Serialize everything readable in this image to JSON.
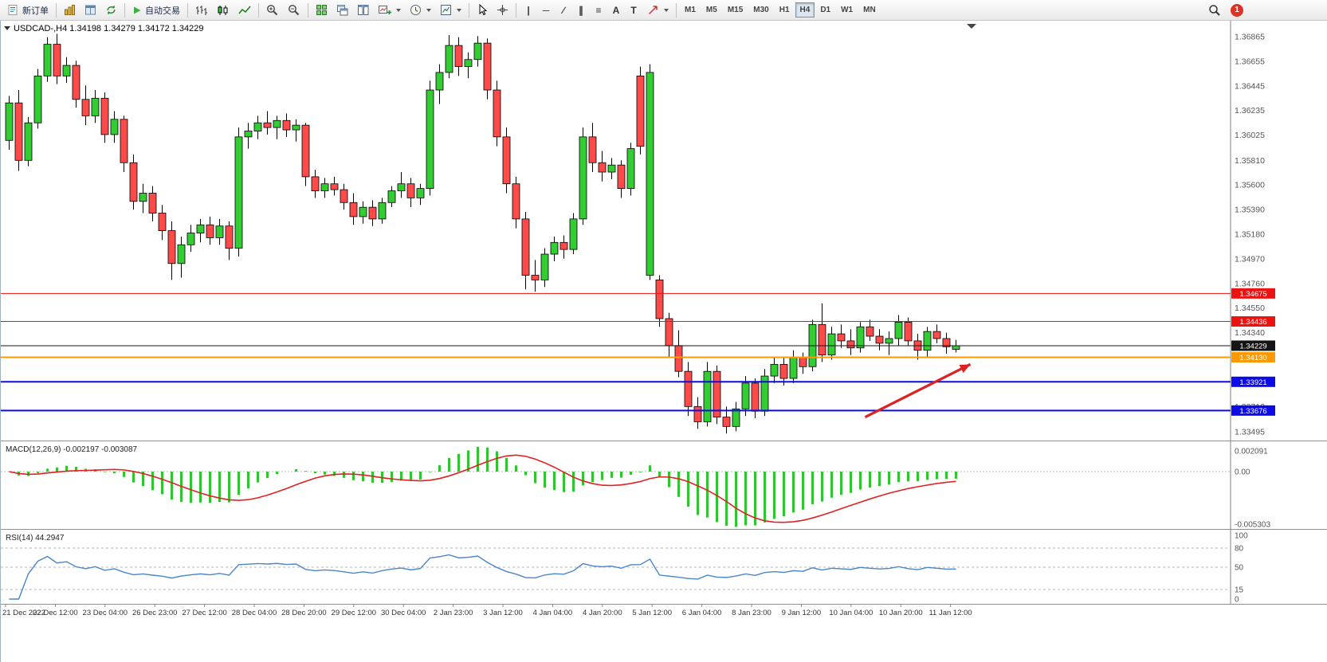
{
  "toolbar": {
    "new_order_label": "新订单",
    "auto_trading_label": "自动交易",
    "tools": [
      {
        "name": "vertical-line-tool",
        "glyph": "|"
      },
      {
        "name": "horizontal-line-tool",
        "glyph": "─"
      },
      {
        "name": "trendline-tool",
        "glyph": "∕"
      },
      {
        "name": "equidistant-channel-tool",
        "glyph": "∥"
      },
      {
        "name": "fibonacci-tool",
        "glyph": "≡"
      },
      {
        "name": "text-tool",
        "glyph": "A"
      },
      {
        "name": "text-label-tool",
        "glyph": "T"
      }
    ],
    "timeframes": [
      "M1",
      "M5",
      "M15",
      "M30",
      "H1",
      "H4",
      "D1",
      "W1",
      "MN"
    ],
    "active_timeframe": "H4",
    "notification_count": "1"
  },
  "chart": {
    "symbol": "USDCAD-,H4",
    "open": "1.34198",
    "high": "1.34279",
    "low": "1.34172",
    "close": "1.34229"
  },
  "colors": {
    "bull": "#33CC33",
    "bear": "#FF4A4A",
    "wick": "#000000",
    "macd_histogram": "#2FC52F",
    "macd_signal": "#E02222",
    "rsi_line": "#4A86C8",
    "axis_text": "#555555",
    "panel_text": "#222222"
  },
  "chart_data": {
    "type": "candlestick",
    "symbol": "USDCAD",
    "period": "H4",
    "price_axis": {
      "top_price": 1.36974,
      "bottom_price": 1.3342,
      "labels": [
        "1.36865",
        "1.36655",
        "1.36445",
        "1.36235",
        "1.36025",
        "1.35810",
        "1.35600",
        "1.35390",
        "1.35180",
        "1.34970",
        "1.34760",
        "1.34550",
        "1.34340",
        "1.34130",
        "1.33920",
        "1.33710",
        "1.33495"
      ]
    },
    "time_axis": [
      "21 Dec 2022",
      "22 Dec 12:00",
      "23 Dec 04:00",
      "26 Dec 23:00",
      "27 Dec 12:00",
      "28 Dec 04:00",
      "28 Dec 20:00",
      "29 Dec 12:00",
      "30 Dec 04:00",
      "2 Jan 23:00",
      "3 Jan 12:00",
      "4 Jan 04:00",
      "4 Jan 20:00",
      "5 Jan 12:00",
      "6 Jan 04:00",
      "8 Jan 23:00",
      "9 Jan 12:00",
      "10 Jan 04:00",
      "10 Jan 20:00",
      "11 Jan 12:00"
    ],
    "candles": [
      [
        1.3598,
        1.3636,
        1.359,
        1.363
      ],
      [
        1.363,
        1.3641,
        1.3572,
        1.3581
      ],
      [
        1.3581,
        1.3618,
        1.3576,
        1.3613
      ],
      [
        1.3613,
        1.3659,
        1.3608,
        1.3653
      ],
      [
        1.3653,
        1.3686,
        1.3648,
        1.368
      ],
      [
        1.368,
        1.3689,
        1.3646,
        1.3653
      ],
      [
        1.3653,
        1.3669,
        1.3647,
        1.3662
      ],
      [
        1.3662,
        1.3666,
        1.3626,
        1.3633
      ],
      [
        1.3633,
        1.3645,
        1.3611,
        1.3619
      ],
      [
        1.3619,
        1.3641,
        1.3613,
        1.3634
      ],
      [
        1.3634,
        1.3639,
        1.3596,
        1.3603
      ],
      [
        1.3603,
        1.3623,
        1.3596,
        1.3616
      ],
      [
        1.3616,
        1.3619,
        1.3571,
        1.3579
      ],
      [
        1.3579,
        1.3586,
        1.3539,
        1.3546
      ],
      [
        1.3546,
        1.3561,
        1.3536,
        1.3553
      ],
      [
        1.3553,
        1.3559,
        1.3529,
        1.3536
      ],
      [
        1.3536,
        1.3543,
        1.3513,
        1.3521
      ],
      [
        1.3521,
        1.3529,
        1.3479,
        1.3493
      ],
      [
        1.3493,
        1.3516,
        1.3481,
        1.3509
      ],
      [
        1.3509,
        1.3526,
        1.3503,
        1.3519
      ],
      [
        1.3519,
        1.3531,
        1.3511,
        1.3526
      ],
      [
        1.3526,
        1.3533,
        1.3509,
        1.3515
      ],
      [
        1.3515,
        1.3531,
        1.3509,
        1.3525
      ],
      [
        1.3525,
        1.3529,
        1.3496,
        1.3506
      ],
      [
        1.3506,
        1.3609,
        1.3499,
        1.3601
      ],
      [
        1.3601,
        1.3613,
        1.3591,
        1.3606
      ],
      [
        1.3606,
        1.3619,
        1.3599,
        1.3613
      ],
      [
        1.3613,
        1.3623,
        1.3603,
        1.3609
      ],
      [
        1.3609,
        1.3619,
        1.3599,
        1.3615
      ],
      [
        1.3615,
        1.3621,
        1.3601,
        1.3607
      ],
      [
        1.3607,
        1.3616,
        1.3597,
        1.3611
      ],
      [
        1.3611,
        1.3613,
        1.3559,
        1.3567
      ],
      [
        1.3567,
        1.3573,
        1.3549,
        1.3555
      ],
      [
        1.3555,
        1.3566,
        1.3549,
        1.3561
      ],
      [
        1.3561,
        1.3567,
        1.3551,
        1.3556
      ],
      [
        1.3556,
        1.3561,
        1.3539,
        1.3545
      ],
      [
        1.3545,
        1.3553,
        1.3526,
        1.3533
      ],
      [
        1.3533,
        1.3546,
        1.3527,
        1.3541
      ],
      [
        1.3541,
        1.3547,
        1.3525,
        1.3531
      ],
      [
        1.3531,
        1.3549,
        1.3527,
        1.3545
      ],
      [
        1.3545,
        1.3559,
        1.3541,
        1.3555
      ],
      [
        1.3555,
        1.3571,
        1.3549,
        1.3561
      ],
      [
        1.3561,
        1.3566,
        1.3541,
        1.3549
      ],
      [
        1.3549,
        1.3561,
        1.3543,
        1.3557
      ],
      [
        1.3557,
        1.3649,
        1.3551,
        1.3641
      ],
      [
        1.3641,
        1.3663,
        1.3629,
        1.3656
      ],
      [
        1.3656,
        1.3688,
        1.3651,
        1.3679
      ],
      [
        1.3679,
        1.3686,
        1.3653,
        1.3661
      ],
      [
        1.3661,
        1.3673,
        1.3651,
        1.3667
      ],
      [
        1.3667,
        1.3687,
        1.3661,
        1.3681
      ],
      [
        1.3681,
        1.3685,
        1.3633,
        1.3641
      ],
      [
        1.3641,
        1.3649,
        1.3593,
        1.3601
      ],
      [
        1.3601,
        1.3609,
        1.3553,
        1.3561
      ],
      [
        1.3561,
        1.3567,
        1.3523,
        1.3531
      ],
      [
        1.3531,
        1.3537,
        1.3471,
        1.3483
      ],
      [
        1.3483,
        1.3496,
        1.3469,
        1.3479
      ],
      [
        1.3479,
        1.3506,
        1.3473,
        1.3501
      ],
      [
        1.3501,
        1.3516,
        1.3495,
        1.3511
      ],
      [
        1.3511,
        1.3517,
        1.3497,
        1.3505
      ],
      [
        1.3505,
        1.3536,
        1.3501,
        1.3531
      ],
      [
        1.3531,
        1.3609,
        1.3526,
        1.3601
      ],
      [
        1.3601,
        1.3613,
        1.3571,
        1.3579
      ],
      [
        1.3579,
        1.3589,
        1.3563,
        1.3571
      ],
      [
        1.3571,
        1.3583,
        1.3565,
        1.3577
      ],
      [
        1.3577,
        1.3581,
        1.3549,
        1.3557
      ],
      [
        1.3557,
        1.3596,
        1.3551,
        1.3591
      ],
      [
        1.3653,
        1.3661,
        1.3586,
        1.3593
      ],
      [
        1.3483,
        1.3663,
        1.3479,
        1.3656
      ],
      [
        1.3479,
        1.3483,
        1.3439,
        1.3446
      ],
      [
        1.3446,
        1.3451,
        1.3413,
        1.3423
      ],
      [
        1.3423,
        1.3436,
        1.3396,
        1.3401
      ],
      [
        1.3401,
        1.3409,
        1.3363,
        1.3371
      ],
      [
        1.3371,
        1.3379,
        1.3352,
        1.3358
      ],
      [
        1.3358,
        1.3409,
        1.3354,
        1.3401
      ],
      [
        1.3401,
        1.3406,
        1.3356,
        1.3362
      ],
      [
        1.3362,
        1.3371,
        1.3348,
        1.3354
      ],
      [
        1.3354,
        1.3375,
        1.335,
        1.3369
      ],
      [
        1.3369,
        1.3397,
        1.3363,
        1.3391
      ],
      [
        1.3391,
        1.3395,
        1.3361,
        1.3367
      ],
      [
        1.3367,
        1.3403,
        1.3363,
        1.3397
      ],
      [
        1.3397,
        1.3413,
        1.3391,
        1.3407
      ],
      [
        1.3407,
        1.3413,
        1.3389,
        1.3395
      ],
      [
        1.3395,
        1.3419,
        1.3391,
        1.3413
      ],
      [
        1.3413,
        1.3417,
        1.3399,
        1.3405
      ],
      [
        1.3405,
        1.3445,
        1.3401,
        1.3441
      ],
      [
        1.3441,
        1.3459,
        1.3409,
        1.3415
      ],
      [
        1.3415,
        1.3439,
        1.3411,
        1.3433
      ],
      [
        1.3433,
        1.3441,
        1.3421,
        1.3427
      ],
      [
        1.3427,
        1.3437,
        1.3415,
        1.3421
      ],
      [
        1.3421,
        1.3443,
        1.3417,
        1.3439
      ],
      [
        1.3439,
        1.3445,
        1.3427,
        1.3431
      ],
      [
        1.3431,
        1.3437,
        1.3419,
        1.3425
      ],
      [
        1.3425,
        1.3435,
        1.3415,
        1.3429
      ],
      [
        1.3429,
        1.3449,
        1.3423,
        1.3443
      ],
      [
        1.3443,
        1.3447,
        1.3423,
        1.3427
      ],
      [
        1.3427,
        1.3433,
        1.3411,
        1.3419
      ],
      [
        1.3419,
        1.3439,
        1.3413,
        1.3435
      ],
      [
        1.3435,
        1.3441,
        1.3425,
        1.3429
      ],
      [
        1.3429,
        1.3434,
        1.3416,
        1.3422
      ],
      [
        1.34198,
        1.34279,
        1.34172,
        1.34229
      ]
    ],
    "hlines": [
      {
        "price": 1.34675,
        "label": "1.34675",
        "color": "#EE1111",
        "width": 1
      },
      {
        "price": 1.34436,
        "label": "1.34436",
        "color": "#EE1111",
        "width": 1
      },
      {
        "price": 1.34229,
        "label": "1.34229",
        "color": "#141414",
        "width": 1
      },
      {
        "price": 1.3413,
        "label": "1.34130",
        "color": "#FF9900",
        "width": 2
      },
      {
        "price": 1.33921,
        "label": "1.33921",
        "color": "#0B0BE8",
        "width": 2
      },
      {
        "price": 1.33676,
        "label": "1.33676",
        "color": "#0B0BE8",
        "width": 2
      }
    ],
    "annotation_arrow": {
      "from_bar": 89.5,
      "from_price": 1.3362,
      "to_bar": 100.5,
      "to_price": 1.3407,
      "color": "#DD2222"
    },
    "macd": {
      "title": "MACD(12,26,9)",
      "values": "-0.002197 -0.003087",
      "params": [
        12,
        26,
        9
      ],
      "axis_labels": [
        "0.002091",
        "0.00",
        "-0.005303"
      ],
      "axis_values": [
        0.002091,
        0,
        -0.005303
      ]
    },
    "rsi": {
      "title": "RSI(14)",
      "value": "44.2947",
      "period": 14,
      "levels": [
        100,
        80,
        50,
        15,
        0
      ]
    }
  }
}
